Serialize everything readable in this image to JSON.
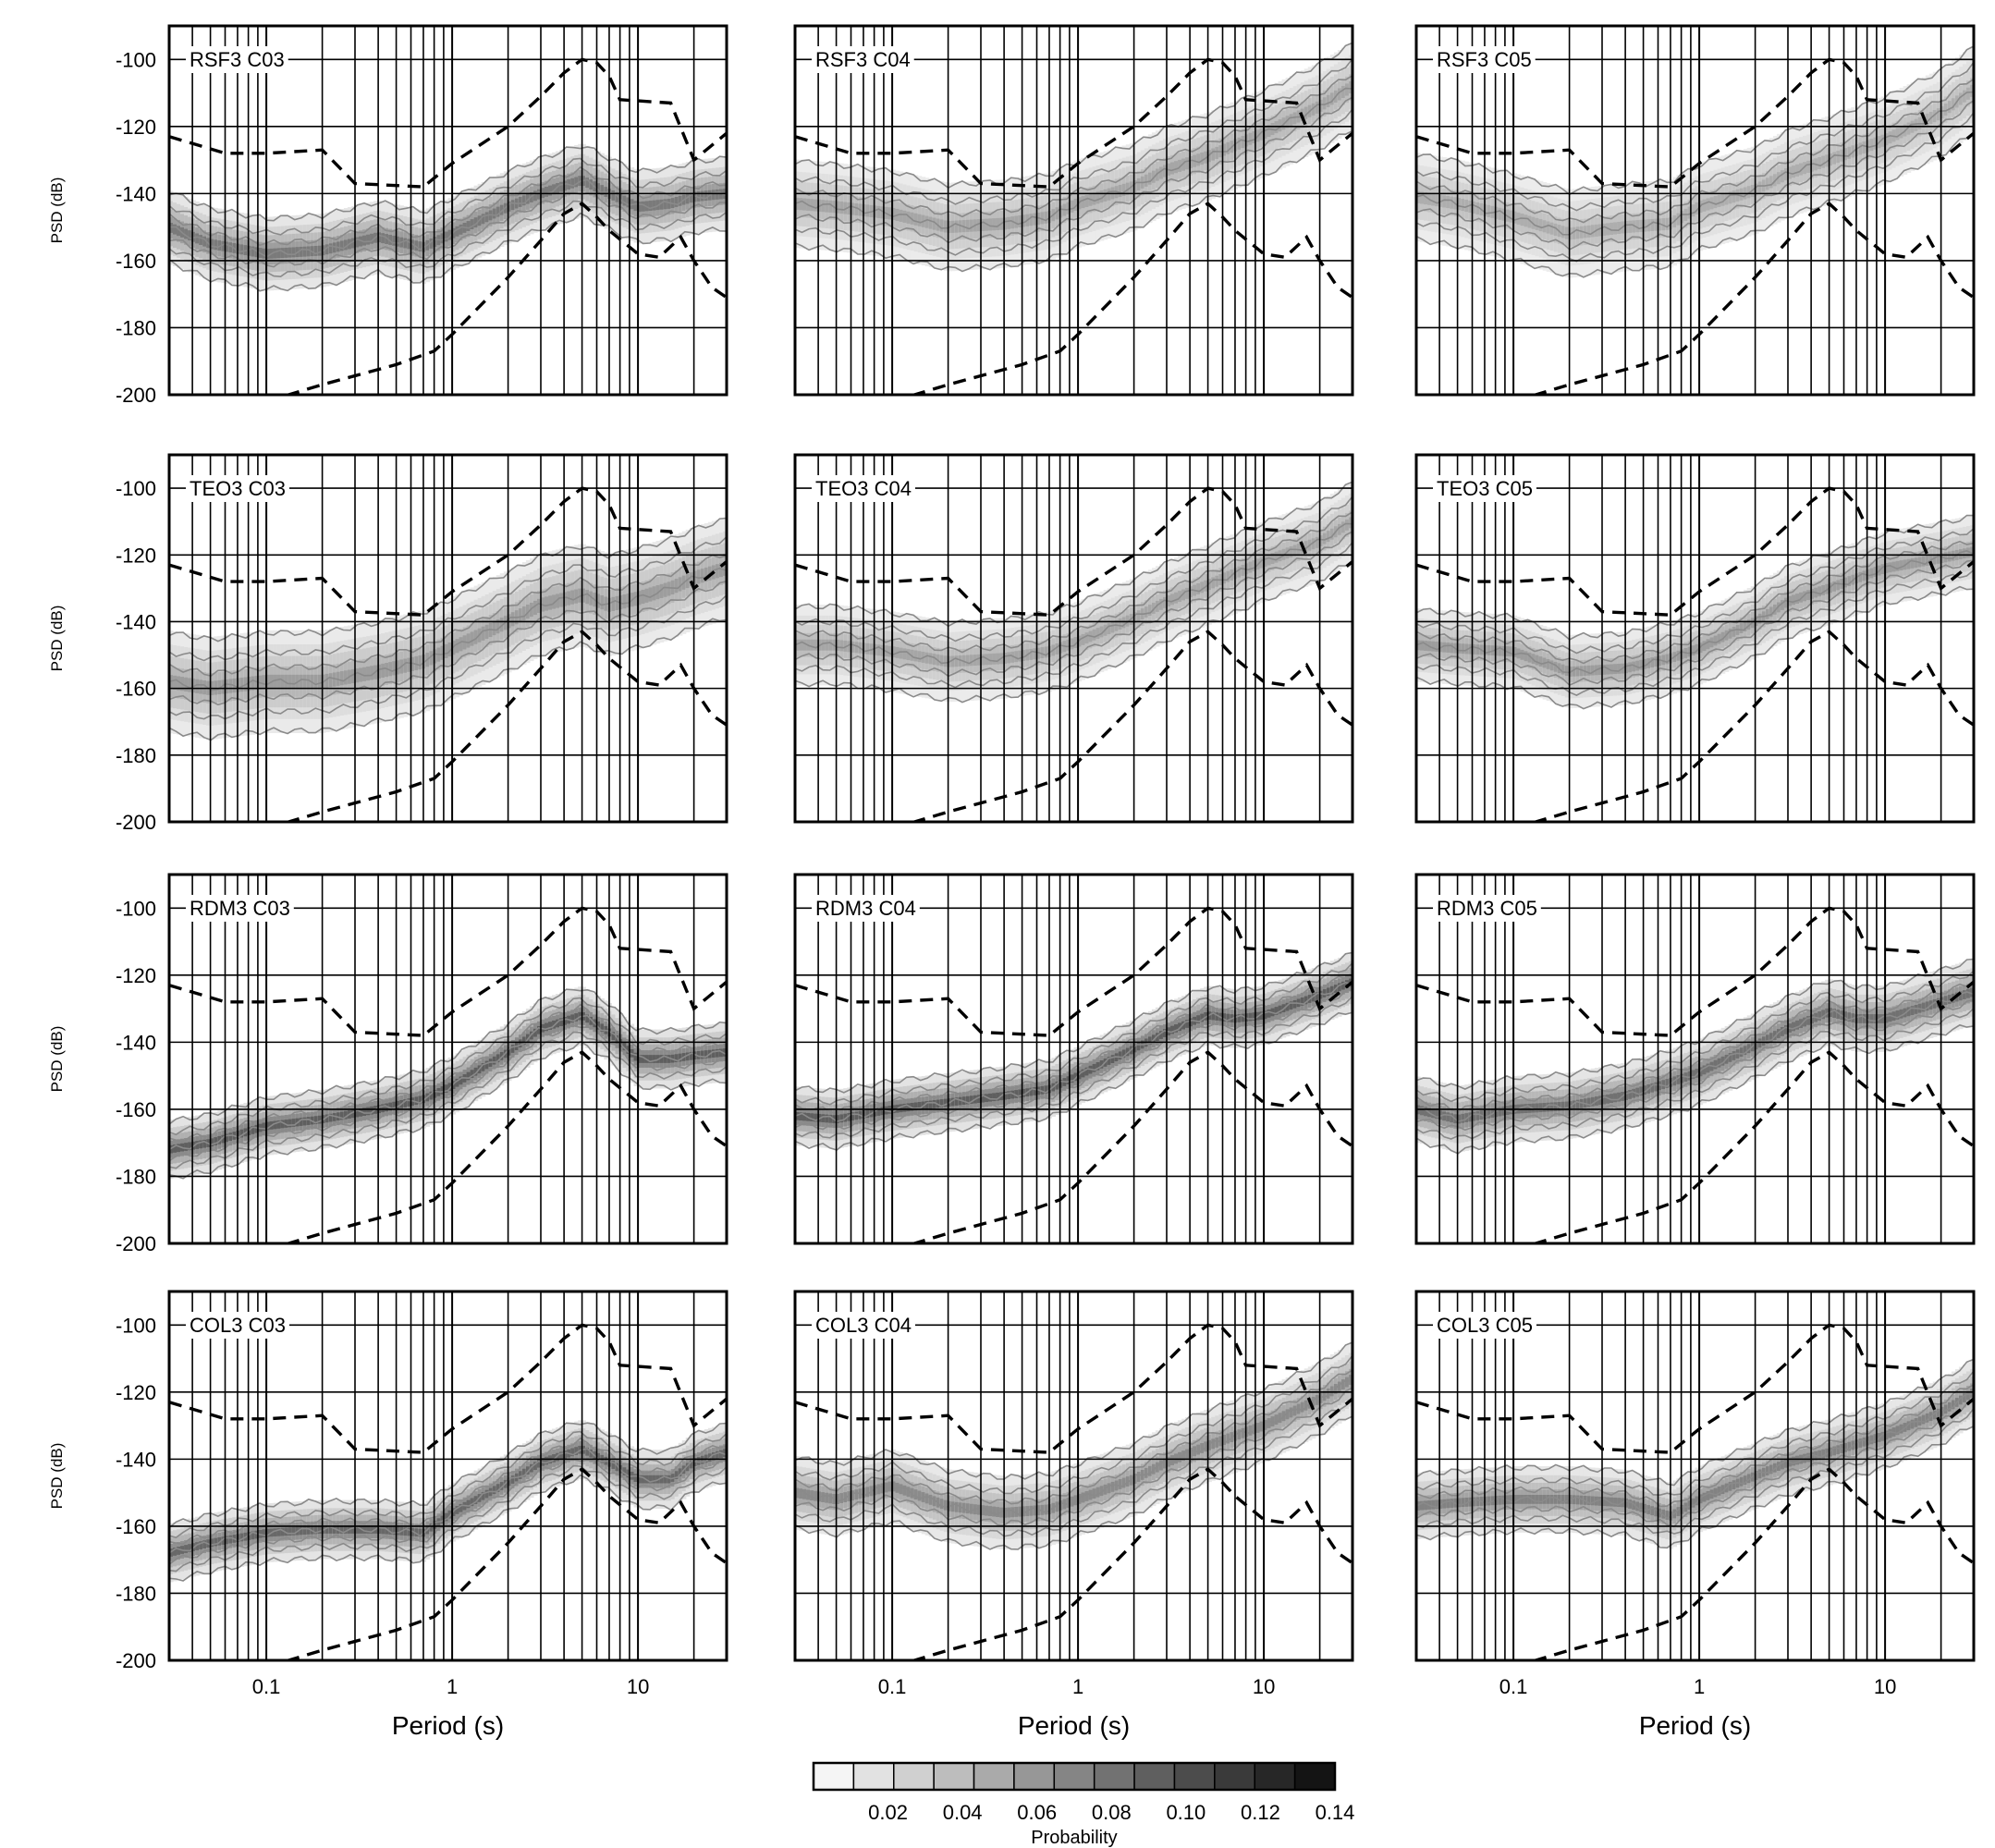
{
  "figure": {
    "ylabel": "PSD (dB)",
    "xlabel": "Period (s)",
    "y_ticks": [
      -100,
      -120,
      -140,
      -160,
      -180,
      -200
    ],
    "x_ticks": [
      {
        "value": 0.1,
        "label": "0.1"
      },
      {
        "value": 1,
        "label": "1"
      },
      {
        "value": 10,
        "label": "10"
      }
    ],
    "colorbar": {
      "label": "Probability",
      "ticks": [
        "0.02",
        "0.04",
        "0.06",
        "0.08",
        "0.10",
        "0.12",
        "0.14"
      ],
      "levels": 13,
      "range": [
        0,
        0.14
      ]
    }
  },
  "chart_data": [
    {
      "type": "heatmap",
      "panel": "RSF3 C03",
      "x_scale": "log",
      "xlim": [
        0.03,
        30
      ],
      "ylim": [
        -200,
        -90
      ],
      "grid": true,
      "mode": [
        [
          0.03,
          -150
        ],
        [
          0.05,
          -155
        ],
        [
          0.1,
          -158
        ],
        [
          0.2,
          -157
        ],
        [
          0.4,
          -153
        ],
        [
          0.7,
          -156
        ],
        [
          1,
          -152
        ],
        [
          2,
          -144
        ],
        [
          3,
          -140
        ],
        [
          5,
          -136
        ],
        [
          7,
          -140
        ],
        [
          10,
          -144
        ],
        [
          15,
          -143
        ],
        [
          20,
          -141
        ],
        [
          30,
          -140
        ]
      ],
      "spread": 10,
      "darkness": 0.7
    },
    {
      "type": "heatmap",
      "panel": "RSF3 C04",
      "x_scale": "log",
      "xlim": [
        0.03,
        30
      ],
      "ylim": [
        -200,
        -90
      ],
      "grid": true,
      "mode": [
        [
          0.03,
          -143
        ],
        [
          0.05,
          -144
        ],
        [
          0.1,
          -146
        ],
        [
          0.2,
          -150
        ],
        [
          0.4,
          -149
        ],
        [
          0.7,
          -147
        ],
        [
          1,
          -143
        ],
        [
          2,
          -138
        ],
        [
          3,
          -133
        ],
        [
          5,
          -129
        ],
        [
          10,
          -122
        ],
        [
          20,
          -114
        ],
        [
          30,
          -108
        ]
      ],
      "spread": 12,
      "darkness": 0.45
    },
    {
      "type": "heatmap",
      "panel": "RSF3 C05",
      "x_scale": "log",
      "xlim": [
        0.03,
        30
      ],
      "ylim": [
        -200,
        -90
      ],
      "grid": true,
      "mode": [
        [
          0.03,
          -141
        ],
        [
          0.05,
          -143
        ],
        [
          0.1,
          -147
        ],
        [
          0.2,
          -152
        ],
        [
          0.4,
          -150
        ],
        [
          0.7,
          -149
        ],
        [
          1,
          -144
        ],
        [
          2,
          -139
        ],
        [
          3,
          -134
        ],
        [
          5,
          -130
        ],
        [
          10,
          -124
        ],
        [
          20,
          -116
        ],
        [
          30,
          -109
        ]
      ],
      "spread": 12,
      "darkness": 0.4
    },
    {
      "type": "heatmap",
      "panel": "TEO3 C03",
      "x_scale": "log",
      "xlim": [
        0.03,
        30
      ],
      "ylim": [
        -200,
        -90
      ],
      "grid": true,
      "mode": [
        [
          0.03,
          -158
        ],
        [
          0.05,
          -160
        ],
        [
          0.1,
          -158
        ],
        [
          0.2,
          -158
        ],
        [
          0.4,
          -155
        ],
        [
          0.7,
          -152
        ],
        [
          1,
          -148
        ],
        [
          2,
          -140
        ],
        [
          3,
          -135
        ],
        [
          5,
          -132
        ],
        [
          7,
          -135
        ],
        [
          10,
          -133
        ],
        [
          15,
          -130
        ],
        [
          20,
          -127
        ],
        [
          30,
          -124
        ]
      ],
      "spread": 14,
      "darkness": 0.5
    },
    {
      "type": "heatmap",
      "panel": "TEO3 C04",
      "x_scale": "log",
      "xlim": [
        0.03,
        30
      ],
      "ylim": [
        -200,
        -90
      ],
      "grid": true,
      "mode": [
        [
          0.03,
          -147
        ],
        [
          0.05,
          -147
        ],
        [
          0.1,
          -149
        ],
        [
          0.2,
          -152
        ],
        [
          0.4,
          -151
        ],
        [
          0.7,
          -149
        ],
        [
          1,
          -146
        ],
        [
          2,
          -139
        ],
        [
          3,
          -134
        ],
        [
          5,
          -129
        ],
        [
          10,
          -122
        ],
        [
          20,
          -116
        ],
        [
          30,
          -110
        ]
      ],
      "spread": 11,
      "darkness": 0.45
    },
    {
      "type": "heatmap",
      "panel": "TEO3 C05",
      "x_scale": "log",
      "xlim": [
        0.03,
        30
      ],
      "ylim": [
        -200,
        -90
      ],
      "grid": true,
      "mode": [
        [
          0.03,
          -147
        ],
        [
          0.05,
          -148
        ],
        [
          0.1,
          -149
        ],
        [
          0.2,
          -155
        ],
        [
          0.4,
          -154
        ],
        [
          0.7,
          -151
        ],
        [
          1,
          -148
        ],
        [
          2,
          -140
        ],
        [
          3,
          -134
        ],
        [
          5,
          -130
        ],
        [
          10,
          -124
        ],
        [
          20,
          -121
        ],
        [
          30,
          -119
        ]
      ],
      "spread": 10,
      "darkness": 0.5
    },
    {
      "type": "heatmap",
      "panel": "RDM3 C03",
      "x_scale": "log",
      "xlim": [
        0.03,
        30
      ],
      "ylim": [
        -200,
        -90
      ],
      "grid": true,
      "mode": [
        [
          0.03,
          -172
        ],
        [
          0.05,
          -170
        ],
        [
          0.1,
          -165
        ],
        [
          0.2,
          -163
        ],
        [
          0.4,
          -160
        ],
        [
          0.7,
          -157
        ],
        [
          1,
          -153
        ],
        [
          2,
          -143
        ],
        [
          3,
          -136
        ],
        [
          5,
          -132
        ],
        [
          7,
          -137
        ],
        [
          10,
          -145
        ],
        [
          15,
          -145
        ],
        [
          20,
          -144
        ],
        [
          30,
          -143
        ]
      ],
      "spread": 8,
      "darkness": 0.85
    },
    {
      "type": "heatmap",
      "panel": "RDM3 C04",
      "x_scale": "log",
      "xlim": [
        0.03,
        30
      ],
      "ylim": [
        -200,
        -90
      ],
      "grid": true,
      "mode": [
        [
          0.03,
          -162
        ],
        [
          0.05,
          -163
        ],
        [
          0.1,
          -160
        ],
        [
          0.2,
          -158
        ],
        [
          0.4,
          -156
        ],
        [
          0.7,
          -154
        ],
        [
          1,
          -150
        ],
        [
          2,
          -142
        ],
        [
          3,
          -137
        ],
        [
          5,
          -132
        ],
        [
          7,
          -133
        ],
        [
          10,
          -132
        ],
        [
          20,
          -126
        ],
        [
          30,
          -122
        ]
      ],
      "spread": 8,
      "darkness": 0.85
    },
    {
      "type": "heatmap",
      "panel": "RDM3 C05",
      "x_scale": "log",
      "xlim": [
        0.03,
        30
      ],
      "ylim": [
        -200,
        -90
      ],
      "grid": true,
      "mode": [
        [
          0.03,
          -160
        ],
        [
          0.05,
          -163
        ],
        [
          0.1,
          -160
        ],
        [
          0.2,
          -159
        ],
        [
          0.4,
          -156
        ],
        [
          0.7,
          -152
        ],
        [
          1,
          -149
        ],
        [
          2,
          -141
        ],
        [
          3,
          -136
        ],
        [
          5,
          -131
        ],
        [
          7,
          -133
        ],
        [
          10,
          -133
        ],
        [
          20,
          -128
        ],
        [
          30,
          -125
        ]
      ],
      "spread": 9,
      "darkness": 0.75
    },
    {
      "type": "heatmap",
      "panel": "COL3 C03",
      "x_scale": "log",
      "xlim": [
        0.03,
        30
      ],
      "ylim": [
        -200,
        -90
      ],
      "grid": true,
      "mode": [
        [
          0.03,
          -168
        ],
        [
          0.05,
          -165
        ],
        [
          0.1,
          -162
        ],
        [
          0.2,
          -161
        ],
        [
          0.4,
          -161
        ],
        [
          0.7,
          -162
        ],
        [
          1,
          -156
        ],
        [
          2,
          -147
        ],
        [
          3,
          -141
        ],
        [
          5,
          -137
        ],
        [
          7,
          -141
        ],
        [
          10,
          -146
        ],
        [
          15,
          -146
        ],
        [
          20,
          -141
        ],
        [
          30,
          -138
        ]
      ],
      "spread": 8,
      "darkness": 0.8
    },
    {
      "type": "heatmap",
      "panel": "COL3 C04",
      "x_scale": "log",
      "xlim": [
        0.03,
        30
      ],
      "ylim": [
        -200,
        -90
      ],
      "grid": true,
      "mode": [
        [
          0.03,
          -150
        ],
        [
          0.05,
          -152
        ],
        [
          0.1,
          -148
        ],
        [
          0.2,
          -154
        ],
        [
          0.4,
          -156
        ],
        [
          0.7,
          -155
        ],
        [
          1,
          -152
        ],
        [
          2,
          -146
        ],
        [
          3,
          -141
        ],
        [
          5,
          -136
        ],
        [
          10,
          -130
        ],
        [
          20,
          -122
        ],
        [
          30,
          -116
        ]
      ],
      "spread": 10,
      "darkness": 0.6
    },
    {
      "type": "heatmap",
      "panel": "COL3 C05",
      "x_scale": "log",
      "xlim": [
        0.03,
        30
      ],
      "ylim": [
        -200,
        -90
      ],
      "grid": true,
      "mode": [
        [
          0.03,
          -154
        ],
        [
          0.05,
          -153
        ],
        [
          0.1,
          -152
        ],
        [
          0.2,
          -152
        ],
        [
          0.4,
          -153
        ],
        [
          0.7,
          -157
        ],
        [
          1,
          -152
        ],
        [
          2,
          -145
        ],
        [
          3,
          -141
        ],
        [
          5,
          -138
        ],
        [
          10,
          -133
        ],
        [
          20,
          -126
        ],
        [
          30,
          -120
        ]
      ],
      "spread": 9,
      "darkness": 0.65
    }
  ],
  "noise_models": {
    "nhnm": [
      [
        0.03,
        -123
      ],
      [
        0.06,
        -128
      ],
      [
        0.1,
        -128
      ],
      [
        0.2,
        -127
      ],
      [
        0.3,
        -137
      ],
      [
        0.7,
        -138
      ],
      [
        1,
        -131
      ],
      [
        2,
        -120
      ],
      [
        3,
        -111
      ],
      [
        4,
        -104
      ],
      [
        5,
        -100
      ],
      [
        6,
        -101
      ],
      [
        7,
        -105
      ],
      [
        8,
        -112
      ],
      [
        15,
        -113
      ],
      [
        20,
        -130
      ],
      [
        30,
        -122
      ]
    ],
    "nlnm": [
      [
        0.1,
        -202
      ],
      [
        0.2,
        -197
      ],
      [
        0.5,
        -191
      ],
      [
        0.8,
        -187
      ],
      [
        1,
        -182
      ],
      [
        2,
        -165
      ],
      [
        3,
        -154
      ],
      [
        4,
        -146
      ],
      [
        5,
        -143
      ],
      [
        6,
        -147
      ],
      [
        7,
        -151
      ],
      [
        10,
        -158
      ],
      [
        13,
        -159
      ],
      [
        17,
        -153
      ],
      [
        20,
        -160
      ],
      [
        25,
        -168
      ],
      [
        30,
        -171
      ]
    ]
  }
}
